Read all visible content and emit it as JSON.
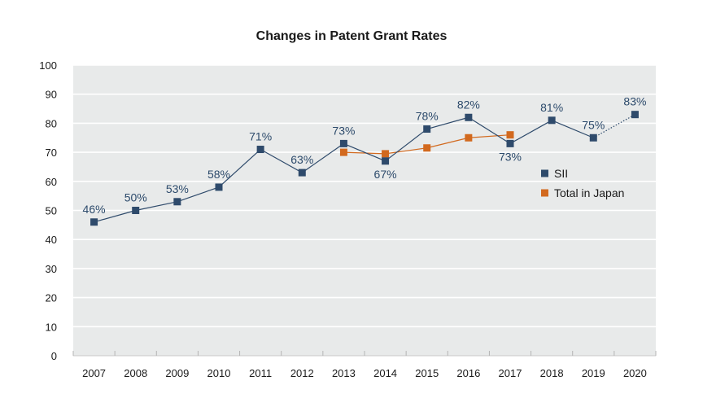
{
  "chart_data": {
    "type": "line",
    "title": "Changes in Patent Grant Rates",
    "xlabel": "",
    "ylabel": "",
    "ylim": [
      0,
      100
    ],
    "yticks": [
      "0",
      "10",
      "20",
      "30",
      "40",
      "50",
      "60",
      "70",
      "80",
      "90",
      "100"
    ],
    "categories": [
      "2007",
      "2008",
      "2009",
      "2010",
      "2011",
      "2012",
      "2013",
      "2014",
      "2015",
      "2016",
      "2017",
      "2018",
      "2019",
      "2020"
    ],
    "grid": "horizontal",
    "legend_position": "right",
    "series": [
      {
        "name": "SII",
        "color": "#2e4a6b",
        "values": [
          46,
          50,
          53,
          58,
          71,
          63,
          73,
          67,
          78,
          82,
          73,
          81,
          75,
          83
        ],
        "labels": [
          "46%",
          "50%",
          "53%",
          "58%",
          "71%",
          "63%",
          "73%",
          "67%",
          "78%",
          "82%",
          "73%",
          "81%",
          "75%",
          "83%"
        ],
        "label_below": [
          false,
          false,
          false,
          false,
          false,
          false,
          false,
          true,
          false,
          false,
          true,
          false,
          false,
          false
        ],
        "dotted_last_segment": true
      },
      {
        "name": "Total in Japan",
        "color": "#d2691e",
        "values": [
          null,
          null,
          null,
          null,
          null,
          null,
          70,
          69.5,
          71.5,
          75,
          76,
          null,
          null,
          null
        ]
      }
    ]
  }
}
